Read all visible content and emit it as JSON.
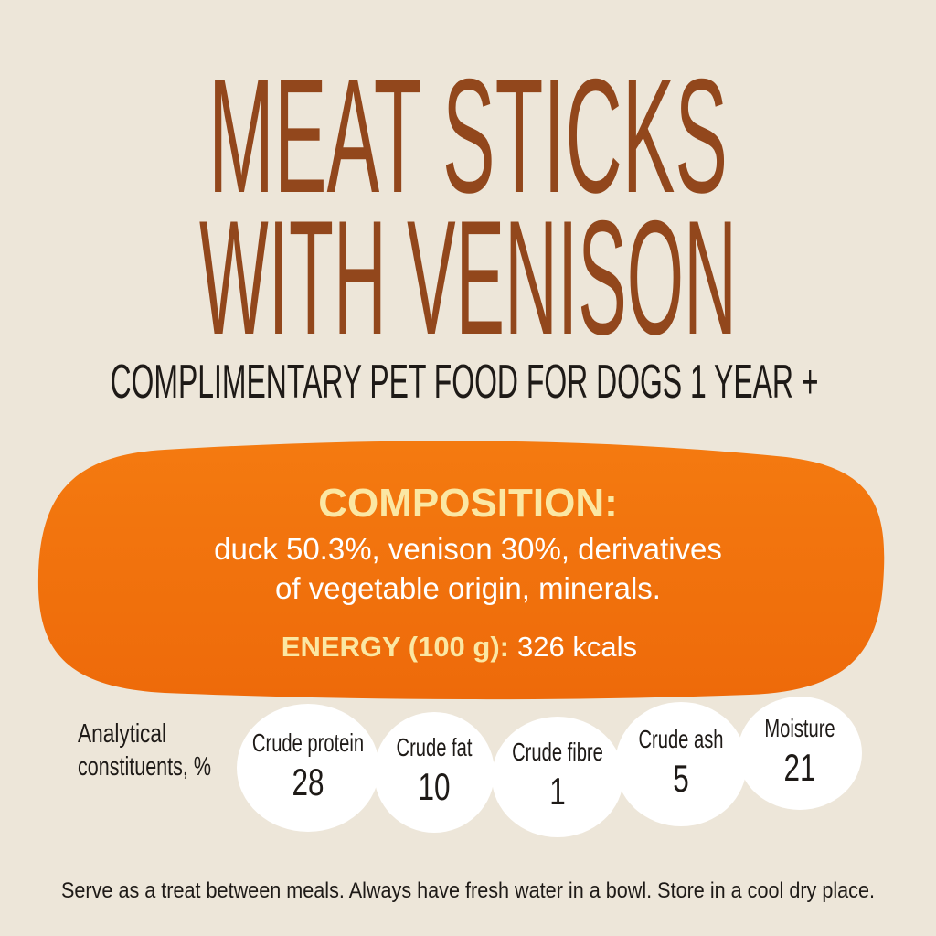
{
  "header": {
    "title_lines": [
      "MEAT STICKS",
      "WITH VENISON"
    ],
    "subtitle": "COMPLIMENTARY PET FOOD FOR DOGS 1 YEAR +"
  },
  "composition": {
    "heading": "COMPOSITION:",
    "lines": [
      "duck 50.3%, venison 30%, derivatives",
      "of vegetable origin, minerals."
    ],
    "energy_label": "ENERGY (100 g):",
    "energy_value": "326 kcals"
  },
  "analytical": {
    "label_lines": [
      "Analytical",
      "constituents, %"
    ],
    "items": [
      {
        "name": "Crude protein",
        "value": "28"
      },
      {
        "name": "Crude fat",
        "value": "10"
      },
      {
        "name": "Crude fibre",
        "value": "1"
      },
      {
        "name": "Crude ash",
        "value": "5"
      },
      {
        "name": "Moisture",
        "value": "21"
      }
    ]
  },
  "footer": "Serve as a treat between meals. Always have fresh water in a bowl. Store in a cool dry place."
}
